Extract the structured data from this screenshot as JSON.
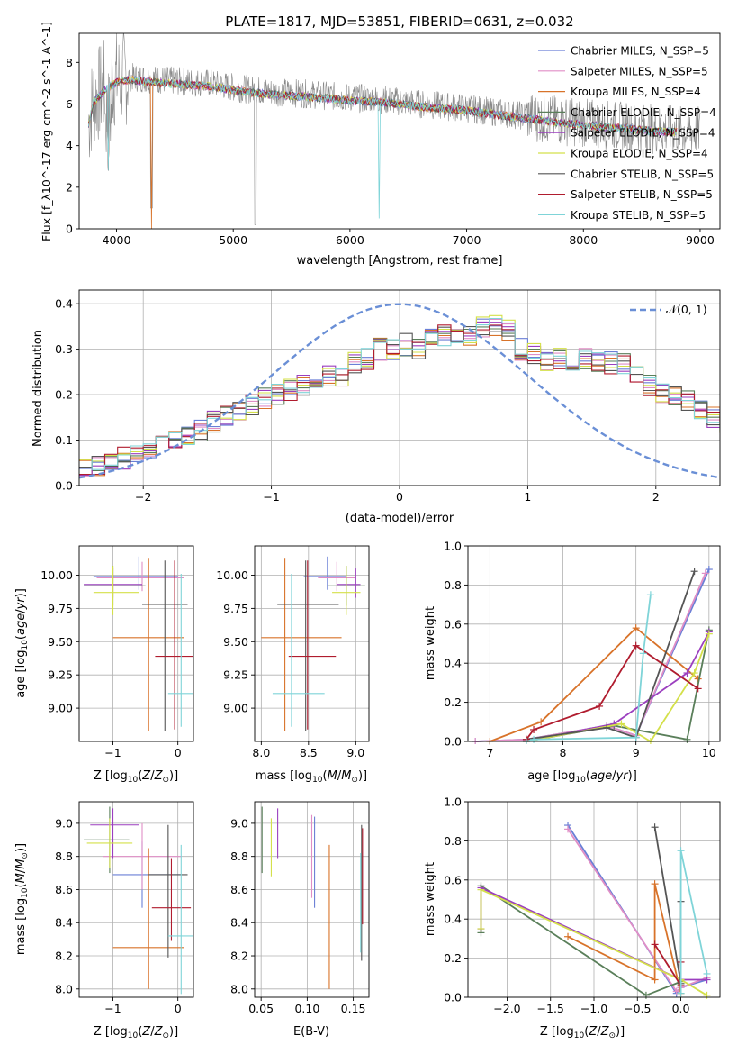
{
  "figure_title": "PLATE=1817, MJD=53851, FIBERID=0631, z=0.032",
  "chart_data": [
    {
      "id": "spectrum",
      "type": "line",
      "xlabel": "wavelength [Angstrom, rest frame]",
      "ylabel": "Flux [f_λ10^-17 erg cm^-2 s^-1 A^-1]",
      "xlim": [
        3680,
        9170
      ],
      "ylim": [
        0,
        9.4
      ],
      "xticks": [
        4000,
        5000,
        6000,
        7000,
        8000,
        9000
      ],
      "yticks": [
        0,
        2,
        4,
        6,
        8
      ],
      "grid": false,
      "legend_position": "top-right",
      "data_flux_continuum": {
        "x": [
          3750,
          3800,
          3900,
          4000,
          4100,
          4300,
          4500,
          4800,
          5000,
          5300,
          5600,
          6000,
          6300,
          6600,
          7000,
          7400,
          7800,
          8200,
          8600,
          9000
        ],
        "y": [
          4.8,
          6.2,
          6.8,
          7.2,
          7.3,
          7.2,
          7.1,
          7.0,
          6.8,
          6.6,
          6.5,
          6.3,
          6.2,
          6.0,
          5.8,
          5.5,
          5.2,
          5.0,
          4.8,
          4.7
        ]
      },
      "series": [
        {
          "name": "Chabrier MILES, N_SSP=5",
          "color": "#6a7fd6"
        },
        {
          "name": "Salpeter MILES, N_SSP=5",
          "color": "#e08ec6"
        },
        {
          "name": "Kroupa MILES, N_SSP=4",
          "color": "#d8732a"
        },
        {
          "name": "Chabrier ELODIE, N_SSP=4",
          "color": "#5a7f5a"
        },
        {
          "name": "Salpeter ELODIE, N_SSP=4",
          "color": "#9b3fbf"
        },
        {
          "name": "Kroupa ELODIE, N_SSP=4",
          "color": "#d4e04a"
        },
        {
          "name": "Chabrier STELIB, N_SSP=5",
          "color": "#555555"
        },
        {
          "name": "Salpeter STELIB, N_SSP=5",
          "color": "#b01c2e"
        },
        {
          "name": "Kroupa STELIB, N_SSP=5",
          "color": "#7fd4d8"
        }
      ]
    },
    {
      "id": "residuals",
      "type": "line",
      "xlabel": "(data-model)/error",
      "ylabel": "Normed distribution",
      "xlim": [
        -2.5,
        2.5
      ],
      "ylim": [
        0,
        0.43
      ],
      "xticks": [
        -2,
        -1,
        0,
        1,
        2
      ],
      "yticks": [
        0.0,
        0.1,
        0.2,
        0.3,
        0.4
      ],
      "grid": true,
      "legend_position": "top-right",
      "gaussian_label": "𝒩(0, 1)",
      "histogram_bins": {
        "start": -2.5,
        "width": 0.1
      },
      "histogram_mean": [
        0.04,
        0.045,
        0.05,
        0.06,
        0.07,
        0.085,
        0.095,
        0.1,
        0.11,
        0.12,
        0.14,
        0.15,
        0.16,
        0.18,
        0.19,
        0.2,
        0.21,
        0.22,
        0.22,
        0.24,
        0.24,
        0.27,
        0.28,
        0.3,
        0.3,
        0.31,
        0.3,
        0.32,
        0.33,
        0.32,
        0.33,
        0.35,
        0.35,
        0.34,
        0.3,
        0.29,
        0.27,
        0.28,
        0.27,
        0.28,
        0.27,
        0.27,
        0.27,
        0.25,
        0.22,
        0.2,
        0.2,
        0.19,
        0.17,
        0.15,
        0.14,
        0.13,
        0.12,
        0.11,
        0.1,
        0.1,
        0.09,
        0.08,
        0.08,
        0.07
      ]
    },
    {
      "id": "age-vs-Z",
      "type": "scatter",
      "xlabel": "Z [log10(Z/Z⊙)]",
      "ylabel": "age [log10(age/yr)]",
      "xlim": [
        -1.52,
        0.24
      ],
      "ylim": [
        8.75,
        10.22
      ],
      "xticks": [
        -1,
        0
      ],
      "yticks": [
        9.0,
        9.25,
        9.5,
        9.75,
        10.0
      ],
      "grid": true,
      "points": [
        {
          "series": "Chabrier MILES",
          "x": -0.6,
          "y": 9.99,
          "xerr": [
            0.7,
            0.6
          ],
          "yerr": [
            0.1,
            0.15
          ]
        },
        {
          "series": "Salpeter MILES",
          "x": -0.55,
          "y": 9.98,
          "xerr": [
            0.7,
            0.65
          ],
          "yerr": [
            0.1,
            0.12
          ]
        },
        {
          "series": "Kroupa MILES",
          "x": -0.45,
          "y": 9.53,
          "xerr": [
            0.55,
            0.55
          ],
          "yerr": [
            0.7,
            0.6
          ]
        },
        {
          "series": "Chabrier ELODIE",
          "x": -1.0,
          "y": 9.92,
          "xerr": [
            0.45,
            0.5
          ],
          "yerr": [
            0.15,
            0.15
          ]
        },
        {
          "series": "Salpeter ELODIE",
          "x": -1.0,
          "y": 9.93,
          "xerr": [
            0.45,
            0.45
          ],
          "yerr": [
            0.1,
            0.12
          ]
        },
        {
          "series": "Kroupa ELODIE",
          "x": -1.0,
          "y": 9.87,
          "xerr": [
            0.3,
            0.4
          ],
          "yerr": [
            0.17,
            0.2
          ]
        },
        {
          "series": "Chabrier STELIB",
          "x": -0.2,
          "y": 9.78,
          "xerr": [
            0.35,
            0.35
          ],
          "yerr": [
            0.95,
            0.33
          ]
        },
        {
          "series": "Salpeter STELIB",
          "x": -0.05,
          "y": 9.39,
          "xerr": [
            0.3,
            0.3
          ],
          "yerr": [
            0.55,
            0.72
          ]
        },
        {
          "series": "Kroupa STELIB",
          "x": 0.05,
          "y": 9.11,
          "xerr": [
            0.2,
            0.2
          ],
          "yerr": [
            0.25,
            0.9
          ]
        }
      ]
    },
    {
      "id": "age-vs-mass",
      "type": "scatter",
      "xlabel": "mass [log10(M/M⊙)]",
      "ylabel": "",
      "xlim": [
        7.93,
        9.14
      ],
      "ylim": [
        8.75,
        10.22
      ],
      "xticks": [
        8.0,
        8.5,
        9.0
      ],
      "yticks": [
        9.0,
        9.25,
        9.5,
        9.75,
        10.0
      ],
      "grid": true,
      "points": [
        {
          "series": "Chabrier MILES",
          "x": 8.7,
          "y": 9.99,
          "xerr": [
            0.25,
            0.2
          ],
          "yerr": [
            0.1,
            0.15
          ]
        },
        {
          "series": "Salpeter MILES",
          "x": 8.8,
          "y": 9.98,
          "xerr": [
            0.2,
            0.2
          ],
          "yerr": [
            0.1,
            0.12
          ]
        },
        {
          "series": "Kroupa MILES",
          "x": 8.25,
          "y": 9.53,
          "xerr": [
            0.25,
            0.6
          ],
          "yerr": [
            0.7,
            0.6
          ]
        },
        {
          "series": "Chabrier ELODIE",
          "x": 8.9,
          "y": 9.92,
          "xerr": [
            0.2,
            0.2
          ],
          "yerr": [
            0.15,
            0.15
          ]
        },
        {
          "series": "Salpeter ELODIE",
          "x": 9.0,
          "y": 9.93,
          "xerr": [
            0.2,
            0.05
          ],
          "yerr": [
            0.1,
            0.12
          ]
        },
        {
          "series": "Kroupa ELODIE",
          "x": 8.9,
          "y": 9.87,
          "xerr": [
            0.15,
            0.15
          ],
          "yerr": [
            0.17,
            0.2
          ]
        },
        {
          "series": "Chabrier STELIB",
          "x": 8.47,
          "y": 9.78,
          "xerr": [
            0.3,
            0.35
          ],
          "yerr": [
            0.95,
            0.33
          ]
        },
        {
          "series": "Salpeter STELIB",
          "x": 8.49,
          "y": 9.39,
          "xerr": [
            0.2,
            0.3
          ],
          "yerr": [
            0.55,
            0.72
          ]
        },
        {
          "series": "Kroupa STELIB",
          "x": 8.32,
          "y": 9.11,
          "xerr": [
            0.2,
            0.35
          ],
          "yerr": [
            0.25,
            0.9
          ]
        }
      ]
    },
    {
      "id": "weight-vs-age",
      "type": "line",
      "xlabel": "age [log10(age/yr)]",
      "ylabel": "mass weight",
      "xlim": [
        6.7,
        10.15
      ],
      "ylim": [
        0,
        1.0
      ],
      "xticks": [
        7,
        8,
        9,
        10
      ],
      "yticks": [
        0.0,
        0.2,
        0.4,
        0.6,
        0.8,
        1.0
      ],
      "grid": true,
      "series": [
        {
          "name": "Chabrier MILES",
          "x": [
            6.8,
            7.5,
            8.6,
            9.0,
            10.0
          ],
          "y": [
            0.0,
            0.01,
            0.08,
            0.03,
            0.88
          ]
        },
        {
          "name": "Salpeter MILES",
          "x": [
            6.8,
            7.5,
            8.6,
            9.0,
            9.95
          ],
          "y": [
            0.0,
            0.01,
            0.08,
            0.03,
            0.86
          ]
        },
        {
          "name": "Kroupa MILES",
          "x": [
            7.0,
            7.7,
            9.0,
            9.85
          ],
          "y": [
            0.0,
            0.1,
            0.58,
            0.32
          ]
        },
        {
          "name": "Chabrier ELODIE",
          "x": [
            7.5,
            8.7,
            9.7,
            10.0
          ],
          "y": [
            0.0,
            0.08,
            0.01,
            0.57
          ]
        },
        {
          "name": "Salpeter ELODIE",
          "x": [
            7.5,
            8.7,
            9.7,
            10.0
          ],
          "y": [
            0.0,
            0.09,
            0.35,
            0.56
          ]
        },
        {
          "name": "Kroupa ELODIE",
          "x": [
            7.5,
            8.8,
            9.2,
            9.8,
            10.0
          ],
          "y": [
            0.0,
            0.09,
            0.0,
            0.35,
            0.55
          ]
        },
        {
          "name": "Chabrier STELIB",
          "x": [
            7.5,
            8.6,
            9.0,
            9.8
          ],
          "y": [
            0.01,
            0.07,
            0.02,
            0.87
          ]
        },
        {
          "name": "Salpeter STELIB",
          "x": [
            7.5,
            7.6,
            8.5,
            9.0,
            9.85
          ],
          "y": [
            0.01,
            0.06,
            0.18,
            0.49,
            0.27
          ]
        },
        {
          "name": "Kroupa STELIB",
          "x": [
            7.5,
            7.6,
            9.0,
            9.1,
            9.2
          ],
          "y": [
            0.0,
            0.01,
            0.02,
            0.45,
            0.75
          ]
        }
      ]
    },
    {
      "id": "mass-vs-Z",
      "type": "scatter",
      "xlabel": "Z [log10(Z/Z⊙)]",
      "ylabel": "mass [log10(M/M⊙)]",
      "xlim": [
        -1.52,
        0.24
      ],
      "ylim": [
        7.95,
        9.13
      ],
      "xticks": [
        -1,
        0
      ],
      "yticks": [
        8.0,
        8.2,
        8.4,
        8.6,
        8.8,
        9.0
      ],
      "grid": true,
      "points": [
        {
          "series": "Chabrier MILES",
          "x": -0.55,
          "y": 8.69,
          "xerr": [
            0.45,
            0.6
          ],
          "yerr": [
            0.2,
            0.2
          ]
        },
        {
          "series": "Salpeter MILES",
          "x": -0.55,
          "y": 8.8,
          "xerr": [
            0.6,
            0.6
          ],
          "yerr": [
            0.2,
            0.2
          ]
        },
        {
          "series": "Kroupa MILES",
          "x": -0.45,
          "y": 8.25,
          "xerr": [
            0.55,
            0.55
          ],
          "yerr": [
            0.25,
            0.6
          ]
        },
        {
          "series": "Chabrier ELODIE",
          "x": -1.05,
          "y": 8.9,
          "xerr": [
            0.4,
            0.3
          ],
          "yerr": [
            0.2,
            0.2
          ]
        },
        {
          "series": "Salpeter ELODIE",
          "x": -1.0,
          "y": 8.99,
          "xerr": [
            0.35,
            0.4
          ],
          "yerr": [
            0.2,
            0.1
          ]
        },
        {
          "series": "Kroupa ELODIE",
          "x": -1.05,
          "y": 8.88,
          "xerr": [
            0.35,
            0.35
          ],
          "yerr": [
            0.15,
            0.15
          ]
        },
        {
          "series": "Chabrier STELIB",
          "x": -0.15,
          "y": 8.69,
          "xerr": [
            0.3,
            0.3
          ],
          "yerr": [
            0.5,
            0.3
          ]
        },
        {
          "series": "Salpeter STELIB",
          "x": -0.1,
          "y": 8.49,
          "xerr": [
            0.3,
            0.3
          ],
          "yerr": [
            0.2,
            0.3
          ]
        },
        {
          "series": "Kroupa STELIB",
          "x": 0.05,
          "y": 8.32,
          "xerr": [
            0.2,
            0.2
          ],
          "yerr": [
            0.35,
            0.55
          ]
        }
      ]
    },
    {
      "id": "mass-vs-ebv",
      "type": "scatter",
      "xlabel": "E(B-V)",
      "ylabel": "",
      "xlim": [
        0.043,
        0.167
      ],
      "ylim": [
        7.95,
        9.13
      ],
      "xticks": [
        0.05,
        0.1,
        0.15
      ],
      "yticks": [
        8.0,
        8.2,
        8.4,
        8.6,
        8.8,
        9.0
      ],
      "grid": true,
      "points": [
        {
          "series": "Chabrier MILES",
          "x": 0.108,
          "y": 8.69,
          "yerr": [
            0.2,
            0.35
          ]
        },
        {
          "series": "Salpeter MILES",
          "x": 0.105,
          "y": 8.8,
          "yerr": [
            0.25,
            0.25
          ]
        },
        {
          "series": "Kroupa MILES",
          "x": 0.124,
          "y": 8.25,
          "yerr": [
            0.25,
            0.62
          ]
        },
        {
          "series": "Chabrier ELODIE",
          "x": 0.051,
          "y": 8.9,
          "yerr": [
            0.2,
            0.2
          ]
        },
        {
          "series": "Salpeter ELODIE",
          "x": 0.068,
          "y": 8.99,
          "yerr": [
            0.2,
            0.1
          ]
        },
        {
          "series": "Kroupa ELODIE",
          "x": 0.061,
          "y": 8.88,
          "yerr": [
            0.2,
            0.15
          ]
        },
        {
          "series": "Chabrier STELIB",
          "x": 0.159,
          "y": 8.69,
          "yerr": [
            0.52,
            0.3
          ]
        },
        {
          "series": "Salpeter STELIB",
          "x": 0.16,
          "y": 8.49,
          "yerr": [
            0.1,
            0.48
          ]
        },
        {
          "series": "Kroupa STELIB",
          "x": 0.158,
          "y": 8.32,
          "yerr": [
            0.1,
            0.5
          ]
        }
      ]
    },
    {
      "id": "weight-vs-Z",
      "type": "line",
      "xlabel": "Z [log10(Z/Z⊙)]",
      "ylabel": "mass weight",
      "xlim": [
        -2.45,
        0.45
      ],
      "ylim": [
        0,
        1.0
      ],
      "xticks": [
        -2.0,
        -1.5,
        -1.0,
        -0.5,
        0.0
      ],
      "yticks": [
        0.0,
        0.2,
        0.4,
        0.6,
        0.8,
        1.0
      ],
      "grid": true,
      "series": [
        {
          "name": "Chabrier MILES",
          "x": [
            -1.3,
            -0.05,
            0.0,
            0.3
          ],
          "y": [
            0.88,
            0.02,
            0.05,
            0.09
          ]
        },
        {
          "name": "Salpeter MILES",
          "x": [
            -1.3,
            -0.05,
            0.0,
            0.3
          ],
          "y": [
            0.86,
            0.03,
            0.05,
            0.1
          ]
        },
        {
          "name": "Kroupa MILES",
          "x": [
            -1.3,
            -0.3,
            -0.3,
            0.0
          ],
          "y": [
            0.31,
            0.09,
            0.58,
            0.02
          ]
        },
        {
          "name": "Chabrier ELODIE",
          "x": [
            -2.3,
            -2.3,
            -0.4,
            0.0
          ],
          "y": [
            0.33,
            0.57,
            0.01,
            0.08
          ]
        },
        {
          "name": "Salpeter ELODIE",
          "x": [
            -2.3,
            -2.3,
            0.0,
            0.3
          ],
          "y": [
            0.35,
            0.56,
            0.09,
            0.09
          ]
        },
        {
          "name": "Kroupa ELODIE",
          "x": [
            -2.3,
            -2.3,
            0.0,
            0.3
          ],
          "y": [
            0.35,
            0.55,
            0.09,
            0.01
          ]
        },
        {
          "name": "Chabrier STELIB",
          "x": [
            -0.3,
            0.0,
            0.0
          ],
          "y": [
            0.87,
            0.07,
            0.49
          ]
        },
        {
          "name": "Salpeter STELIB",
          "x": [
            -0.3,
            0.0,
            0.0
          ],
          "y": [
            0.27,
            0.06,
            0.18
          ]
        },
        {
          "name": "Kroupa STELIB",
          "x": [
            0.0,
            0.0,
            0.3
          ],
          "y": [
            0.02,
            0.75,
            0.12
          ]
        }
      ]
    }
  ]
}
